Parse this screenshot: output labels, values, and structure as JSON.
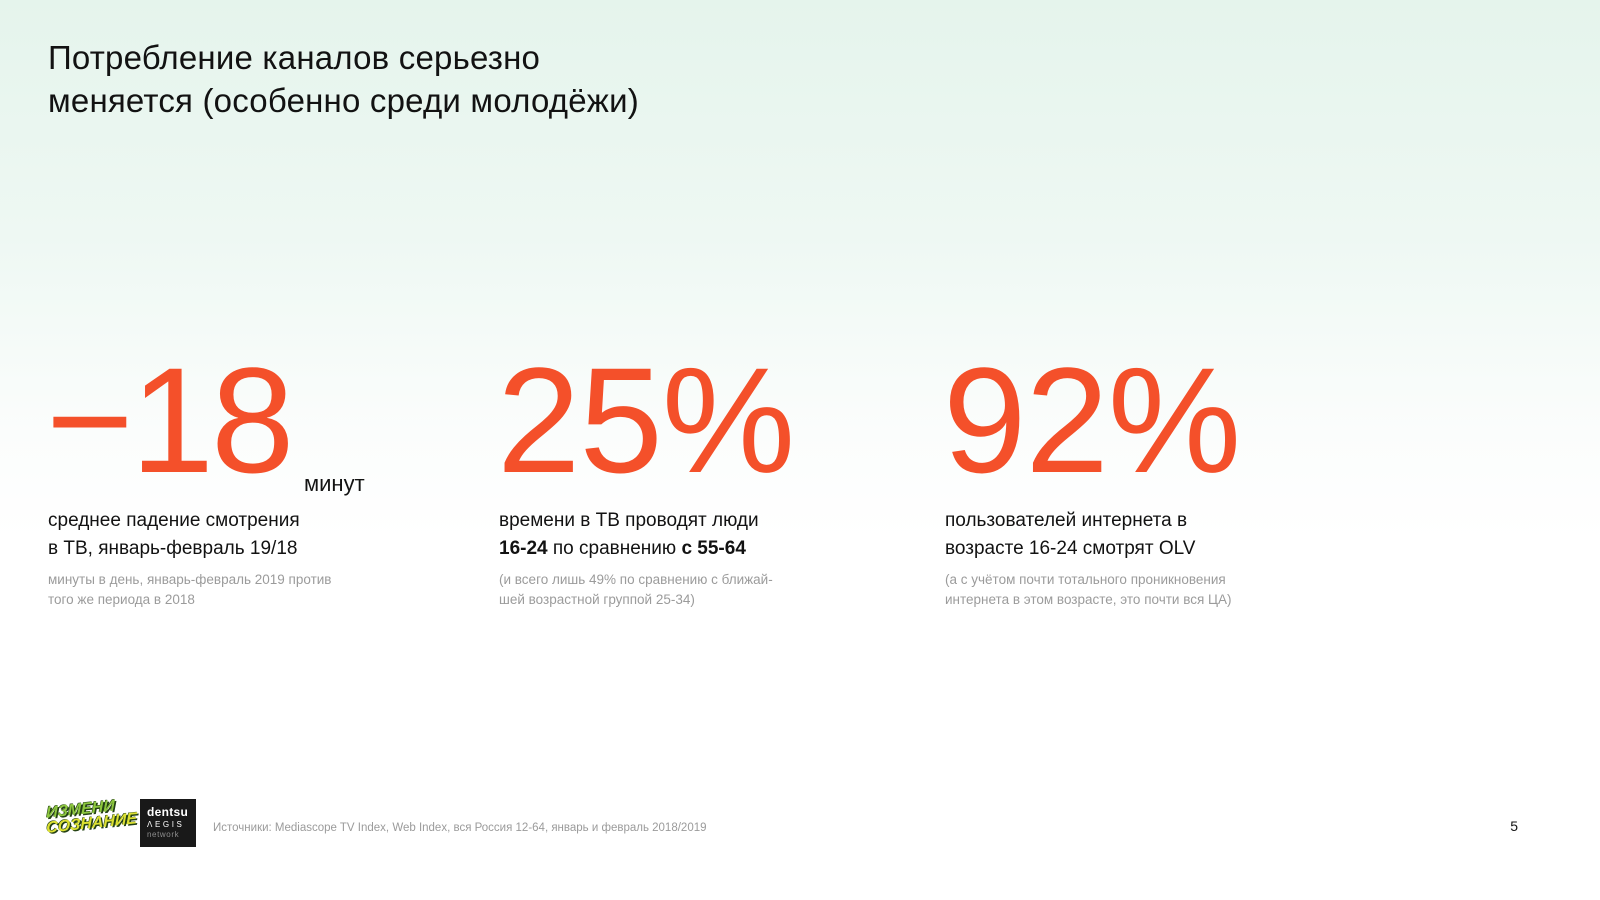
{
  "slide": {
    "accent_color": "#f4502a",
    "title": {
      "line1": "Потребление каналов серьезно",
      "line2": "меняется (особенно среди молодёжи)"
    },
    "stats": [
      {
        "value": "−18",
        "unit": "минут",
        "desc_line1": "среднее падение смотрения",
        "desc_line2": "в ТВ, январь-февраль 19/18",
        "note_line1": "минуты в день, январь-февраль 2019 против",
        "note_line2": "того же периода в 2018"
      },
      {
        "value": "25%",
        "desc_line1": "времени в ТВ проводят люди",
        "desc_line2_bold1": "16-24",
        "desc_line2_mid": " по сравнению ",
        "desc_line2_bold2": "с 55-64",
        "note_line1": "(и всего лишь 49% по сравнению с ближай-",
        "note_line2": "шей возрастной группой 25-34)"
      },
      {
        "value": "92%",
        "desc_line1": "пользователей интернета в",
        "desc_line2": "возрасте 16-24 смотрят OLV",
        "note_line1": "(а с учётом почти тотального проникновения",
        "note_line2": "интернета в этом возрасте, это почти вся ЦА)"
      }
    ],
    "footer": {
      "logo_izmeni_line1": "ИЗМЕНИ",
      "logo_izmeni_line2": "СОЗНАНИЕ",
      "logo_dentsu_line1": "dentsu",
      "logo_dentsu_line2": "ΛEGIS",
      "logo_dentsu_line3": "network",
      "sources": "Источники: Mediascope TV Index, Web Index, вся Россия 12-64, январь и февраль 2018/2019",
      "page_number": "5"
    }
  }
}
